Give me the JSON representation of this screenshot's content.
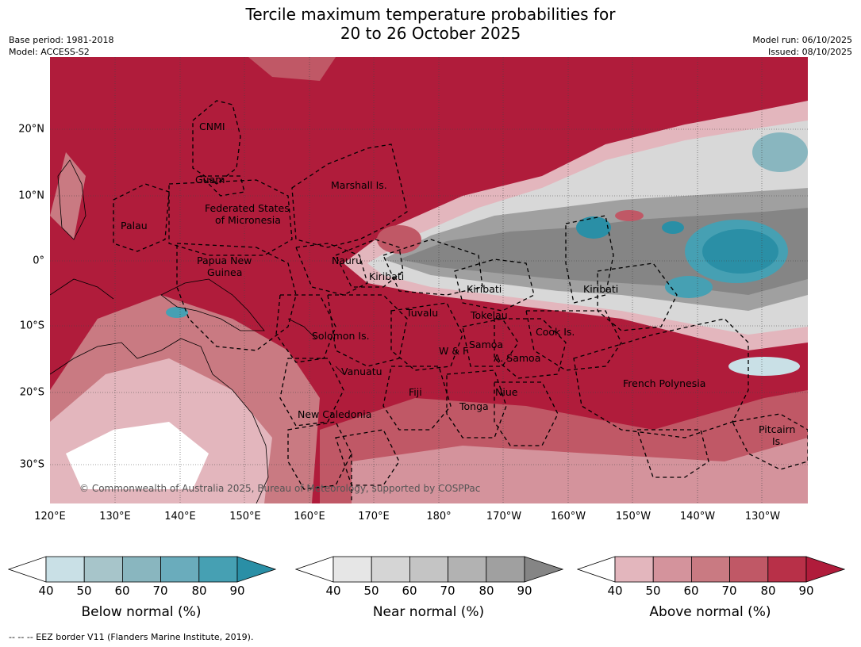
{
  "title_line1": "Tercile maximum temperature probabilities for",
  "title_line2": "20 to 26 October 2025",
  "meta": {
    "base_period": "Base period: 1981-2018",
    "model": "Model: ACCESS-S2",
    "model_run": "Model run: 06/10/2025",
    "issued": "Issued: 08/10/2025"
  },
  "map": {
    "lon_labels": [
      "120°E",
      "130°E",
      "140°E",
      "150°E",
      "160°E",
      "170°E",
      "180°",
      "170°W",
      "160°W",
      "150°W",
      "140°W",
      "130°W"
    ],
    "lat_labels": [
      "20°N",
      "10°N",
      "0°",
      "10°S",
      "20°S",
      "30°S"
    ],
    "regions": {
      "cnmi": "CNMI",
      "guam": "Guam",
      "marshall": "Marshall Is.",
      "fsm1": "Federated States",
      "fsm2": "of Micronesia",
      "palau": "Palau",
      "png1": "Papua New",
      "png2": "Guinea",
      "nauru": "Nauru",
      "kiribati_w": "Kiribati",
      "kiribati_c": "Kiribati",
      "kiribati_e": "Kiribati",
      "tuvalu": "Tuvalu",
      "tokelau": "Tokelau",
      "solomon": "Solomon Is.",
      "cook": "Cook Is.",
      "wf": "W & F",
      "samoa": "Samoa",
      "asamoa": "A. Samoa",
      "vanuatu": "Vanuatu",
      "fiji": "Fiji",
      "niue": "Niue",
      "tonga": "Tonga",
      "frpoly": "French Polynesia",
      "newcal": "New Caledonia",
      "pitcairn1": "Pitcairn",
      "pitcairn2": "Is."
    },
    "copyright": "© Commonwealth of Australia 2025, Bureau of Meteorology, supported by COSPPac"
  },
  "colorbars": [
    {
      "label": "Below normal (%)",
      "ticks": [
        "40",
        "50",
        "60",
        "70",
        "80",
        "90"
      ],
      "colors": [
        "#ffffff",
        "#c9e0e6",
        "#a7c5ca",
        "#89b6bf",
        "#6aacbc",
        "#46a0b3",
        "#2a8fa6"
      ]
    },
    {
      "label": "Near normal (%)",
      "ticks": [
        "40",
        "50",
        "60",
        "70",
        "80",
        "90"
      ],
      "colors": [
        "#ffffff",
        "#e6e6e6",
        "#d5d5d5",
        "#c4c4c4",
        "#b2b2b2",
        "#a0a0a0",
        "#858585"
      ]
    },
    {
      "label": "Above normal (%)",
      "ticks": [
        "40",
        "50",
        "60",
        "70",
        "80",
        "90"
      ],
      "colors": [
        "#ffffff",
        "#e3b6bd",
        "#d4939c",
        "#c97a82",
        "#c05866",
        "#b83048",
        "#b01c3b"
      ]
    }
  ],
  "footer": "-- -- -- EEZ border V11 (Flanders Marine Institute, 2019).",
  "colors": {
    "above_dark": "#b01c3b",
    "above_mid": "#c4515f",
    "above_light": "#e3b6bd",
    "near_light": "#d8d8d8",
    "near_dark": "#858585",
    "below_dark": "#2a8fa6",
    "below_light": "#a7cdd5"
  }
}
